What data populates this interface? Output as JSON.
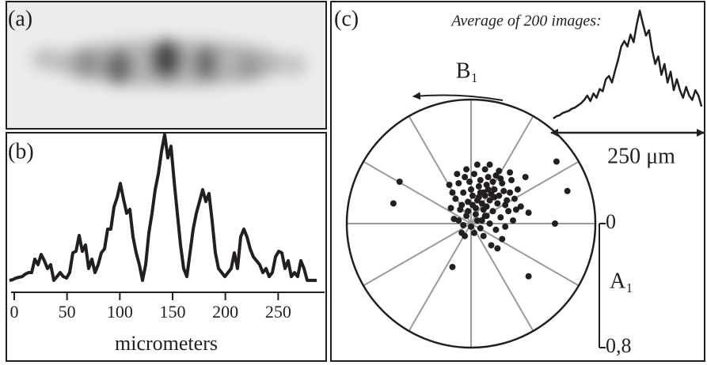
{
  "image_panel": {
    "label": "(a)"
  },
  "chart_data": [
    {
      "type": "line",
      "panel": "(b)",
      "color": "#231f20",
      "x": [
        -4.5,
        -1.5,
        1.5,
        4.5,
        7.5,
        10.5,
        13.5,
        16.5,
        19.5,
        22.5,
        25.5,
        28.5,
        31.5,
        34.5,
        37.5,
        40.5,
        43.5,
        46.5,
        49.5,
        52.5,
        55.5,
        58.5,
        61.5,
        64.5,
        67.5,
        70.5,
        73.5,
        76.5,
        79.5,
        82.5,
        85.5,
        88.5,
        91.5,
        94.5,
        97.5,
        100.5,
        103.5,
        106.5,
        109.5,
        112.5,
        115.5,
        118.5,
        121.5,
        124.5,
        127.5,
        130.5,
        133.5,
        136.5,
        139.5,
        142.5,
        145.5,
        148.5,
        151.5,
        154.5,
        157.5,
        160.5,
        163.5,
        166.5,
        169.5,
        172.5,
        175.5,
        178.5,
        181.5,
        184.5,
        187.5,
        190.5,
        193.5,
        196.5,
        199.5,
        202.5,
        205.5,
        208.5,
        211.5,
        214.5,
        217.5,
        220.5,
        223.5,
        226.5,
        229.5,
        232.5,
        235.5,
        238.5,
        241.5,
        244.5,
        247.5,
        250.5,
        253.5,
        256.5,
        259.5,
        262.5,
        265.5,
        268.5,
        271.5,
        274.5,
        277.5,
        280.5,
        283.5,
        286.5
      ],
      "values": [
        2.6,
        3.1,
        4.1,
        4.6,
        5.1,
        6.7,
        7.7,
        7.7,
        16.4,
        12.8,
        19.5,
        15.4,
        10.3,
        12.8,
        2.6,
        5.1,
        7.7,
        5.1,
        4.1,
        7.7,
        20.5,
        21.5,
        31.8,
        21.5,
        25.6,
        10.3,
        16.4,
        7.7,
        12.8,
        20.5,
        23.1,
        35.9,
        35.9,
        50.3,
        56.4,
        65.6,
        55.4,
        46.2,
        48.7,
        30.8,
        20.5,
        12.8,
        2.6,
        12.8,
        33.3,
        46.2,
        61.5,
        71.8,
        86.2,
        97.4,
        82.1,
        89.7,
        66.7,
        46.2,
        25.6,
        10.3,
        5.1,
        20.5,
        35.9,
        46.2,
        53.8,
        61.5,
        53.8,
        59.0,
        41.0,
        20.5,
        10.3,
        7.7,
        5.1,
        7.7,
        10.3,
        20.5,
        10.3,
        30.8,
        35.9,
        30.8,
        23.1,
        17.9,
        15.4,
        12.8,
        7.7,
        10.3,
        5.1,
        7.7,
        17.9,
        21.5,
        20.5,
        10.3,
        15.4,
        5.1,
        7.7,
        5.1,
        15.4,
        10.3,
        2.6,
        2.6,
        2.6,
        2.6
      ],
      "xlim": [
        -6,
        294
      ],
      "ylim": [
        0,
        100
      ],
      "xticks": [
        0,
        50,
        100,
        150,
        200,
        250
      ],
      "xlabel": "micrometers"
    },
    {
      "type": "polar-scatter",
      "panel": "(c)",
      "color": "#231f20",
      "x": [
        0.05,
        0.08,
        0.12,
        0.03,
        -0.02,
        0.1,
        0.15,
        0.18,
        0.06,
        0.0,
        -0.05,
        -0.08,
        -0.1,
        0.2,
        0.22,
        0.14,
        0.09,
        0.04,
        -0.03,
        -0.07,
        0.02,
        0.09,
        0.16,
        0.25,
        0.28,
        0.24,
        0.19,
        0.12,
        0.06,
        0.0,
        -0.05,
        -0.11,
        -0.12,
        -0.04,
        0.11,
        0.13,
        0.07,
        0.01,
        -0.06,
        0.17,
        0.21,
        0.26,
        0.3,
        0.32,
        0.08,
        0.03,
        -0.01,
        0.05,
        0.14,
        0.18,
        0.12,
        0.04,
        -0.03,
        -0.09,
        0.23,
        0.1,
        0.02,
        0.08,
        0.16,
        0.2,
        -0.04,
        0.13,
        0.17,
        0.06,
        0.09,
        0.11,
        0.15,
        0.01,
        -0.02,
        0.07,
        -0.13,
        -0.14,
        0.27,
        0.22,
        0.35,
        0.37,
        -0.5,
        -0.46,
        0.62,
        0.54,
        0.55,
        -0.12,
        0.37,
        0.1,
        0.04,
        -0.08,
        0.29,
        0.19,
        0.25,
        -0.06
      ],
      "values": [
        0.17,
        0.2,
        0.15,
        0.1,
        0.14,
        0.25,
        0.22,
        0.18,
        0.28,
        0.22,
        0.2,
        0.26,
        0.16,
        0.26,
        0.12,
        0.08,
        0.05,
        0.02,
        0.05,
        0.09,
        0.32,
        0.35,
        0.31,
        0.2,
        0.16,
        0.08,
        0.04,
        0.0,
        -0.03,
        -0.02,
        -0.01,
        0.03,
        0.2,
        0.3,
        0.3,
        0.19,
        0.13,
        0.18,
        0.12,
        0.13,
        0.21,
        0.28,
        0.22,
        0.11,
        0.09,
        0.06,
        0.27,
        0.24,
        0.27,
        0.34,
        0.38,
        0.38,
        0.35,
        0.32,
        0.15,
        0.11,
        -0.06,
        -0.08,
        -0.04,
        -0.1,
        -0.08,
        -0.14,
        -0.16,
        0.2,
        0.18,
        0.22,
        0.17,
        0.12,
        0.08,
        0.02,
        0.1,
        0.25,
        0.02,
        -0.02,
        0.3,
        0.07,
        0.13,
        0.27,
        0.21,
        0.0,
        0.4,
        -0.28,
        -0.34,
        0.05,
        0.15,
        0.02,
        0.09,
        0.29,
        0.33,
        -0.06
      ],
      "rlim": [
        0,
        0.8
      ],
      "rticks": [
        0,
        {
          "value": 0.8,
          "label": "0,8"
        }
      ],
      "radial_label": "A₁",
      "angular_label": "B₁"
    },
    {
      "type": "line",
      "title": "Average of 200 images:",
      "color": "#231f20",
      "x": [
        5,
        10,
        15,
        20,
        25,
        30,
        35,
        40,
        45,
        50,
        55,
        60,
        65,
        70,
        75,
        80,
        85,
        90,
        95,
        100,
        105,
        110,
        115,
        120,
        125,
        130,
        135,
        140,
        145,
        150,
        155,
        160,
        165,
        170,
        175,
        180,
        185,
        190,
        195,
        200,
        205,
        210,
        215,
        220,
        225,
        230,
        235,
        240,
        245
      ],
      "values": [
        0,
        2,
        3,
        5,
        6,
        7,
        9,
        10,
        12,
        14,
        17,
        21,
        16,
        23,
        19,
        27,
        25,
        36,
        39,
        33,
        44,
        54,
        66,
        71,
        66,
        77,
        70,
        86,
        99,
        87,
        76,
        81,
        63,
        50,
        57,
        40,
        50,
        33,
        43,
        26,
        36,
        26,
        19,
        29,
        21,
        17,
        26,
        21,
        11
      ],
      "xlim": [
        0,
        250
      ],
      "ylim": [
        0,
        100
      ],
      "scale_bar": {
        "value": 250,
        "label": "250 μm"
      }
    }
  ]
}
